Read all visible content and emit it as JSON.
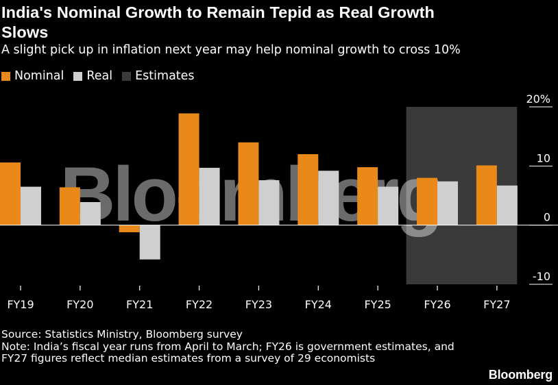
{
  "title": "India's Nominal Growth to Remain Tepid as Real Growth Slows",
  "subtitle": "A slight pick up in inflation next year may help nominal growth to cross 10%",
  "legend": [
    {
      "label": "Nominal",
      "color": "#e8891a"
    },
    {
      "label": "Real",
      "color": "#cfcfcf"
    },
    {
      "label": "Estimates",
      "color": "#3a3a3a"
    }
  ],
  "watermark": "Bloomberg",
  "chart_data": {
    "type": "bar",
    "categories": [
      "FY19",
      "FY20",
      "FY21",
      "FY22",
      "FY23",
      "FY24",
      "FY25",
      "FY26",
      "FY27"
    ],
    "series": [
      {
        "name": "Nominal",
        "color": "#e8891a",
        "values": [
          10.6,
          6.4,
          -1.2,
          18.9,
          14.0,
          12.0,
          9.8,
          8.0,
          10.1
        ]
      },
      {
        "name": "Real",
        "color": "#cfcfcf",
        "values": [
          6.5,
          3.9,
          -5.8,
          9.7,
          7.6,
          9.2,
          6.5,
          7.4,
          6.7
        ]
      }
    ],
    "estimates_range": [
      "FY26",
      "FY27"
    ],
    "ylim": [
      -10,
      20
    ],
    "yticks": [
      -10,
      0,
      10,
      20
    ],
    "ytick_labels": [
      "-10",
      "0",
      "10",
      "20%"
    ],
    "xlabel": "",
    "ylabel": "",
    "grid": false,
    "legend_position": "top-left"
  },
  "footer": {
    "source": "Source: Statistics Ministry, Bloomberg survey",
    "note": "Note: India’s fiscal year runs from April to March; FY26 is government estimates, and FY27 figures reflect median estimates from a survey of 29 economists"
  },
  "brand": "Bloomberg"
}
